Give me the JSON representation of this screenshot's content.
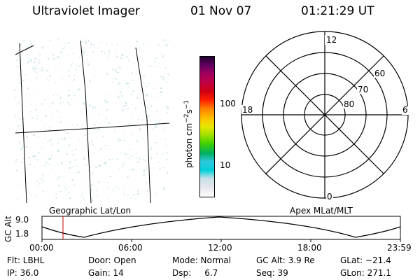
{
  "header": {
    "title": "Ultraviolet Imager",
    "date": "01 Nov 07",
    "time": "01:21:29 UT"
  },
  "colorbar": {
    "label": "photon cm-2s-1",
    "ticks": [
      "100",
      "10"
    ],
    "colors": [
      "#ffffff",
      "#e8e8ee",
      "#c8e0e8",
      "#00d0d8",
      "#30c8e0",
      "#00b060",
      "#40d000",
      "#a0e000",
      "#e8e800",
      "#ffc000",
      "#ff8000",
      "#ff2000",
      "#d00010",
      "#c00040",
      "#a00060",
      "#600060",
      "#200030"
    ]
  },
  "polar": {
    "ring_labels": [
      "60",
      "70",
      "80"
    ],
    "mlt_labels": {
      "top": "12",
      "left": "18",
      "right": "6",
      "bottom": "0"
    }
  },
  "timeline": {
    "ylabel": "GC Alt",
    "yticks": [
      "9.0",
      "1.8"
    ],
    "left_caption": "Geographic Lat/Lon",
    "right_caption": "Apex MLat/MLT",
    "xticks": [
      "00:00",
      "06:00",
      "12:00",
      "18:00",
      "23:59"
    ],
    "cursor_time": "01:21:29",
    "colors": {
      "cursor": "#cc0000"
    }
  },
  "info": {
    "flt": "Flt: LBHL",
    "ip": "IP: 36.0",
    "door": "Door: Open",
    "gain": "Gain: 14",
    "mode": "Mode: Normal",
    "dsp": "Dsp:     6.7",
    "gcalt": "GC Alt: 3.9 Re",
    "seq": "Seq: 39",
    "glat": "GLat: −21.4",
    "glon": "GLon: 271.1"
  }
}
